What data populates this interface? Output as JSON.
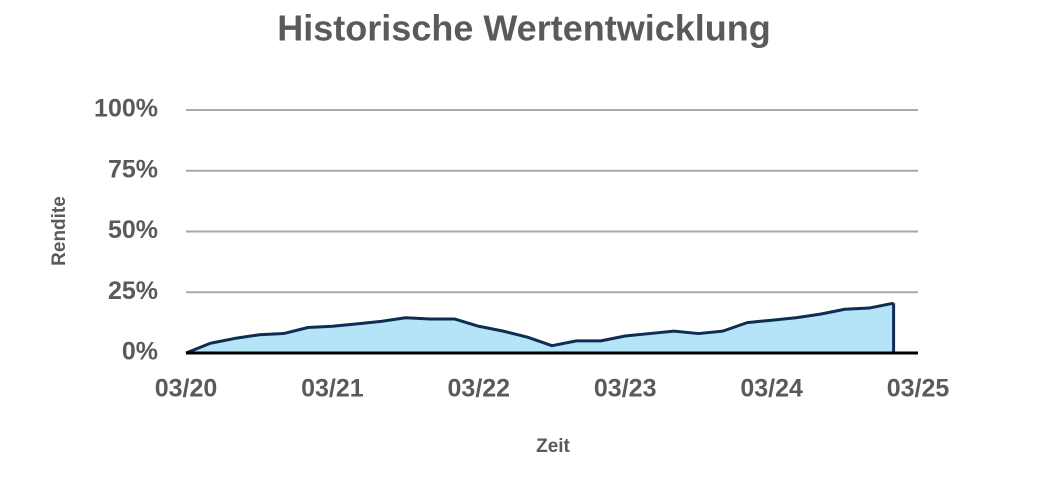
{
  "chart_data": {
    "type": "area",
    "title": "Historische Wertentwicklung",
    "x_label": "Zeit",
    "y_label": "Rendite",
    "x": [
      "2020-03",
      "2020-05",
      "2020-07",
      "2020-09",
      "2020-11",
      "2021-01",
      "2021-03",
      "2021-05",
      "2021-07",
      "2021-09",
      "2021-11",
      "2022-01",
      "2022-03",
      "2022-05",
      "2022-07",
      "2022-09",
      "2022-11",
      "2023-01",
      "2023-03",
      "2023-05",
      "2023-07",
      "2023-09",
      "2023-11",
      "2024-01",
      "2024-03",
      "2024-05",
      "2024-07",
      "2024-09",
      "2024-11",
      "2025-01"
    ],
    "values": [
      0,
      4,
      6,
      7.5,
      8,
      10.5,
      11,
      12,
      13,
      14.5,
      14,
      14,
      11,
      9,
      6.5,
      3,
      5,
      5,
      7,
      8,
      9,
      8,
      9,
      12.5,
      13.5,
      14.5,
      16,
      18,
      18.5,
      20.5
    ],
    "color": "#b5e4f8",
    "line_color": "#0f2d52",
    "xlim": [
      "2020-03",
      "2025-03"
    ],
    "xticks": [
      {
        "value": "2020-03",
        "label": "03/20"
      },
      {
        "value": "2021-03",
        "label": "03/21"
      },
      {
        "value": "2022-03",
        "label": "03/22"
      },
      {
        "value": "2023-03",
        "label": "03/23"
      },
      {
        "value": "2024-03",
        "label": "03/24"
      },
      {
        "value": "2025-03",
        "label": "03/25"
      }
    ],
    "ylim": [
      0,
      100
    ],
    "yticks": [
      {
        "value": 0,
        "label": "0%"
      },
      {
        "value": 25,
        "label": "25%"
      },
      {
        "value": 50,
        "label": "50%"
      },
      {
        "value": 75,
        "label": "75%"
      },
      {
        "value": 100,
        "label": "100%"
      }
    ],
    "grid": true
  }
}
